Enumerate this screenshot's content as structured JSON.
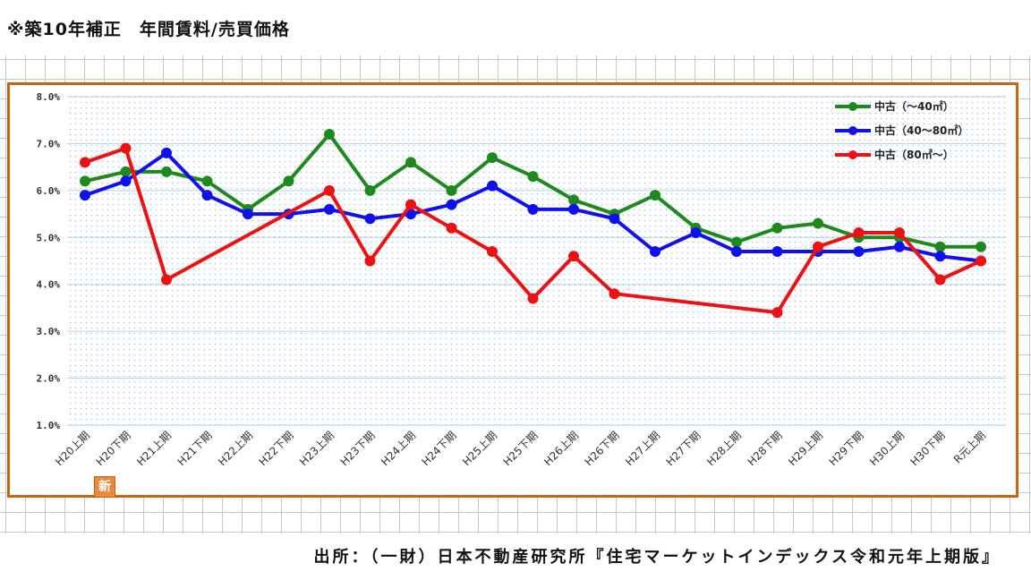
{
  "header": {
    "title": "※築10年補正　年間賃料/売買価格"
  },
  "footer": {
    "source": "出所：（一財）日本不動産研究所『住宅マーケットインデックス令和元年上期版』"
  },
  "badge": {
    "label": "新"
  },
  "chart_data": {
    "type": "line",
    "categories": [
      "H20上期",
      "H20下期",
      "H21上期",
      "H21下期",
      "H22上期",
      "H22下期",
      "H23上期",
      "H23下期",
      "H24上期",
      "H24下期",
      "H25上期",
      "H25下期",
      "H26上期",
      "H26下期",
      "H27上期",
      "H27下期",
      "H28上期",
      "H28下期",
      "H29上期",
      "H29下期",
      "H30上期",
      "H30下期",
      "R元上期"
    ],
    "ylim": [
      1.0,
      8.0
    ],
    "yticks": [
      "1.0%",
      "2.0%",
      "3.0%",
      "4.0%",
      "5.0%",
      "6.0%",
      "7.0%",
      "8.0%"
    ],
    "y_tick_values": [
      1,
      2,
      3,
      4,
      5,
      6,
      7,
      8
    ],
    "legend_position": "top-right",
    "grid": true,
    "series": [
      {
        "name": "中古（～40㎡）",
        "color": "#1e8a1e",
        "values": [
          6.2,
          6.4,
          6.4,
          6.2,
          5.6,
          6.2,
          7.2,
          6.0,
          6.6,
          6.0,
          6.7,
          6.3,
          5.8,
          5.5,
          5.9,
          5.2,
          4.9,
          5.2,
          5.3,
          5.0,
          5.0,
          4.8,
          4.8
        ]
      },
      {
        "name": "中古（40～80㎡）",
        "color": "#1010ee",
        "values": [
          5.9,
          6.2,
          6.8,
          5.9,
          5.5,
          5.5,
          5.6,
          5.4,
          5.5,
          5.7,
          6.1,
          5.6,
          5.6,
          5.4,
          4.7,
          5.1,
          4.7,
          4.7,
          4.7,
          4.7,
          4.8,
          4.6,
          4.5
        ]
      },
      {
        "name": "中古（80㎡～）",
        "color": "#ee1111",
        "values": [
          6.6,
          6.9,
          4.1,
          null,
          null,
          null,
          6.0,
          4.5,
          5.7,
          5.2,
          4.7,
          3.7,
          4.6,
          3.8,
          null,
          null,
          null,
          3.4,
          4.8,
          5.1,
          5.1,
          4.1,
          4.5
        ]
      }
    ]
  }
}
